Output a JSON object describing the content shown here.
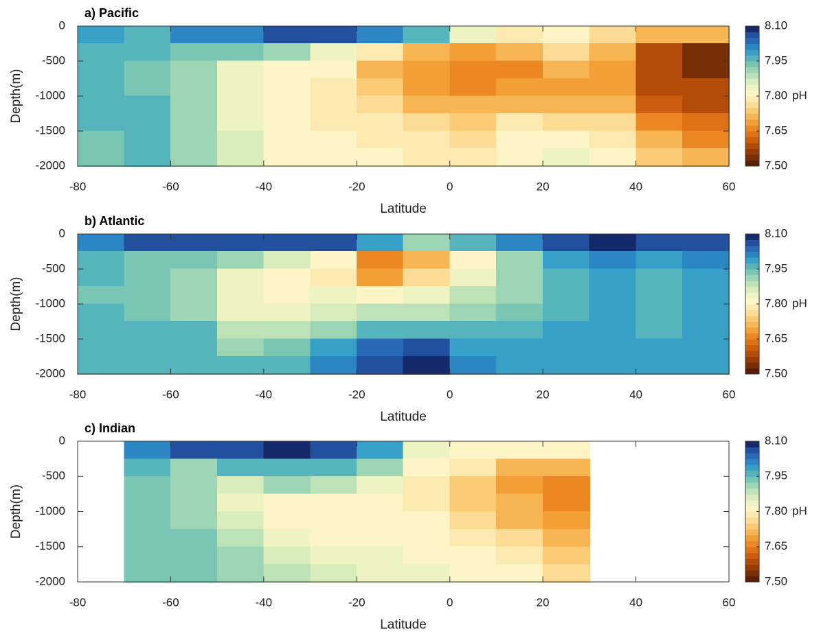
{
  "chart_data": [
    {
      "type": "contour",
      "title": "a) Pacific",
      "x_label": "Latitude",
      "y_label": "Depth(m)",
      "x": [
        -80,
        -70,
        -60,
        -50,
        -40,
        -30,
        -20,
        -10,
        0,
        10,
        20,
        30,
        40,
        50,
        60
      ],
      "y": [
        0,
        -250,
        -500,
        -750,
        -1000,
        -1250,
        -1500,
        -1750,
        -2000
      ],
      "values": [
        [
          7.98,
          7.97,
          8.0,
          8.02,
          8.05,
          8.05,
          8.02,
          7.95,
          7.85,
          7.78,
          7.8,
          7.75,
          7.72,
          7.7
        ],
        [
          7.95,
          7.95,
          7.93,
          7.93,
          7.9,
          7.85,
          7.78,
          7.72,
          7.68,
          7.72,
          7.75,
          7.72,
          7.6,
          7.55
        ],
        [
          7.95,
          7.94,
          7.9,
          7.85,
          7.82,
          7.8,
          7.72,
          7.68,
          7.65,
          7.66,
          7.7,
          7.68,
          7.58,
          7.55
        ],
        [
          7.95,
          7.94,
          7.9,
          7.83,
          7.8,
          7.78,
          7.73,
          7.68,
          7.66,
          7.68,
          7.68,
          7.68,
          7.6,
          7.58
        ],
        [
          7.95,
          7.96,
          7.9,
          7.84,
          7.8,
          7.78,
          7.76,
          7.72,
          7.7,
          7.72,
          7.72,
          7.72,
          7.62,
          7.6
        ],
        [
          7.95,
          7.96,
          7.9,
          7.85,
          7.8,
          7.79,
          7.78,
          7.76,
          7.74,
          7.78,
          7.77,
          7.76,
          7.66,
          7.64
        ],
        [
          7.94,
          7.96,
          7.9,
          7.86,
          7.81,
          7.8,
          7.79,
          7.78,
          7.76,
          7.8,
          7.8,
          7.79,
          7.7,
          7.67
        ],
        [
          7.94,
          7.95,
          7.9,
          7.86,
          7.82,
          7.8,
          7.8,
          7.79,
          7.78,
          7.82,
          7.83,
          7.82,
          7.73,
          7.7
        ]
      ],
      "xlim": [
        -80,
        60
      ],
      "xticks": [
        -80,
        -60,
        -40,
        -20,
        0,
        20,
        40,
        60
      ],
      "ylim": [
        -2000,
        0
      ],
      "yticks": [
        0,
        -500,
        -1000,
        -1500,
        -2000
      ],
      "colorbar": {
        "label": "pH",
        "lim": [
          7.5,
          8.1
        ],
        "ticks": [
          {
            "value": 7.5,
            "label": "7.50"
          },
          {
            "value": 7.65,
            "label": "7.65"
          },
          {
            "value": 7.8,
            "label": "7.80"
          },
          {
            "value": 7.95,
            "label": "7.95"
          },
          {
            "value": 8.1,
            "label": "8.10"
          }
        ]
      }
    },
    {
      "type": "contour",
      "title": "b) Atlantic",
      "x_label": "Latitude",
      "y_label": "Depth(m)",
      "x": [
        -80,
        -70,
        -60,
        -50,
        -40,
        -30,
        -20,
        -10,
        0,
        10,
        20,
        30,
        40,
        50,
        60
      ],
      "y": [
        0,
        -250,
        -500,
        -750,
        -1000,
        -1250,
        -1500,
        -1750,
        -2000
      ],
      "values": [
        [
          8.0,
          8.05,
          8.05,
          8.05,
          8.07,
          8.05,
          7.98,
          7.92,
          7.95,
          8.02,
          8.07,
          8.08,
          8.05,
          8.05
        ],
        [
          7.97,
          7.93,
          7.93,
          7.9,
          7.86,
          7.8,
          7.65,
          7.72,
          7.82,
          7.9,
          7.98,
          8.02,
          7.98,
          8.0
        ],
        [
          7.95,
          7.93,
          7.9,
          7.84,
          7.82,
          7.78,
          7.68,
          7.75,
          7.84,
          7.9,
          7.96,
          7.98,
          7.95,
          7.98
        ],
        [
          7.94,
          7.93,
          7.9,
          7.84,
          7.82,
          7.83,
          7.82,
          7.84,
          7.88,
          7.92,
          7.97,
          7.98,
          7.95,
          7.98
        ],
        [
          7.95,
          7.94,
          7.92,
          7.85,
          7.84,
          7.86,
          7.88,
          7.88,
          7.9,
          7.94,
          7.97,
          7.98,
          7.96,
          7.98
        ],
        [
          7.95,
          7.95,
          7.95,
          7.88,
          7.88,
          7.92,
          7.95,
          7.97,
          7.97,
          7.97,
          7.98,
          7.98,
          7.97,
          7.98
        ],
        [
          7.95,
          7.95,
          7.96,
          7.92,
          7.93,
          7.98,
          8.03,
          8.07,
          7.99,
          7.98,
          7.99,
          7.99,
          7.98,
          7.98
        ],
        [
          7.95,
          7.95,
          7.96,
          7.95,
          7.96,
          8.0,
          8.05,
          8.09,
          8.0,
          7.98,
          7.99,
          7.99,
          7.98,
          7.98
        ]
      ],
      "xlim": [
        -80,
        60
      ],
      "xticks": [
        -80,
        -60,
        -40,
        -20,
        0,
        20,
        40,
        60
      ],
      "ylim": [
        -2000,
        0
      ],
      "yticks": [
        0,
        -500,
        -1000,
        -1500,
        -2000
      ],
      "colorbar": {
        "label": "pH",
        "lim": [
          7.5,
          8.1
        ],
        "ticks": [
          {
            "value": 7.5,
            "label": "7.50"
          },
          {
            "value": 7.65,
            "label": "7.65"
          },
          {
            "value": 7.8,
            "label": "7.80"
          },
          {
            "value": 7.95,
            "label": "7.95"
          },
          {
            "value": 8.1,
            "label": "8.10"
          }
        ]
      }
    },
    {
      "type": "contour",
      "title": "c) Indian",
      "x_label": "Latitude",
      "y_label": "Depth(m)",
      "x": [
        -80,
        -70,
        -60,
        -50,
        -40,
        -30,
        -20,
        -10,
        0,
        10,
        20,
        30,
        40,
        50,
        60
      ],
      "y": [
        0,
        -250,
        -500,
        -750,
        -1000,
        -1250,
        -1500,
        -1750,
        -2000
      ],
      "values": [
        [
          null,
          8.0,
          8.05,
          8.05,
          8.08,
          8.07,
          7.98,
          7.85,
          7.8,
          7.8,
          7.8,
          null,
          null,
          null
        ],
        [
          null,
          7.95,
          7.9,
          7.95,
          7.97,
          7.95,
          7.9,
          7.82,
          7.78,
          7.72,
          7.7,
          null,
          null,
          null
        ],
        [
          null,
          7.94,
          7.9,
          7.86,
          7.9,
          7.88,
          7.84,
          7.79,
          7.74,
          7.68,
          7.67,
          null,
          null,
          null
        ],
        [
          null,
          7.93,
          7.9,
          7.85,
          7.82,
          7.82,
          7.82,
          7.78,
          7.74,
          7.7,
          7.67,
          null,
          null,
          null
        ],
        [
          null,
          7.93,
          7.92,
          7.86,
          7.82,
          7.8,
          7.81,
          7.8,
          7.76,
          7.72,
          7.68,
          null,
          null,
          null
        ],
        [
          null,
          7.93,
          7.93,
          7.88,
          7.84,
          7.82,
          7.82,
          7.81,
          7.78,
          7.76,
          7.7,
          null,
          null,
          null
        ],
        [
          null,
          7.93,
          7.94,
          7.9,
          7.86,
          7.84,
          7.83,
          7.82,
          7.8,
          7.78,
          7.74,
          null,
          null,
          null
        ],
        [
          null,
          7.93,
          7.94,
          7.92,
          7.88,
          7.86,
          7.85,
          7.84,
          7.82,
          7.8,
          7.77,
          null,
          null,
          null
        ]
      ],
      "xlim": [
        -80,
        60
      ],
      "xticks": [
        -80,
        -60,
        -40,
        -20,
        0,
        20,
        40,
        60
      ],
      "ylim": [
        -2000,
        0
      ],
      "yticks": [
        0,
        -500,
        -1000,
        -1500,
        -2000
      ],
      "colorbar": {
        "label": "pH",
        "lim": [
          7.5,
          8.1
        ],
        "ticks": [
          {
            "value": 7.5,
            "label": "7.50"
          },
          {
            "value": 7.65,
            "label": "7.65"
          },
          {
            "value": 7.8,
            "label": "7.80"
          },
          {
            "value": 7.95,
            "label": "7.95"
          },
          {
            "value": 8.1,
            "label": "8.10"
          }
        ]
      }
    }
  ]
}
